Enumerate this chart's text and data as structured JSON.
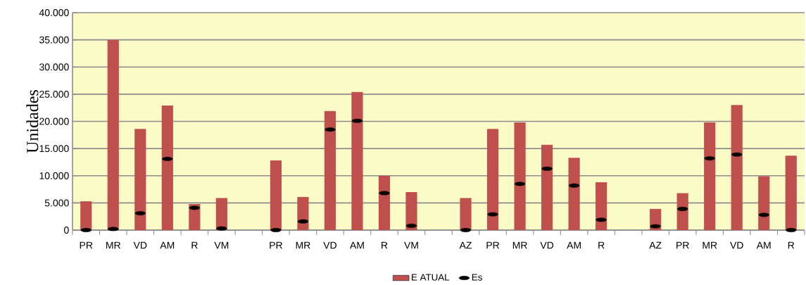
{
  "chart_data": {
    "type": "bar",
    "ylabel": "Unidades",
    "categories": [
      "PR",
      "MR",
      "VD",
      "AM",
      "R",
      "VM",
      null,
      "PR",
      "MR",
      "VD",
      "AM",
      "R",
      "VM",
      null,
      "AZ",
      "PR",
      "MR",
      "VD",
      "AM",
      "R",
      null,
      "AZ",
      "PR",
      "MR",
      "VD",
      "AM",
      "R"
    ],
    "series": [
      {
        "name": "E ATUAL",
        "type": "bar",
        "color": "#c0504d",
        "values": [
          5300,
          35000,
          18600,
          22900,
          4800,
          5900,
          null,
          12800,
          6100,
          21900,
          25400,
          10000,
          7000,
          null,
          5900,
          18600,
          19800,
          15700,
          13300,
          8800,
          null,
          3900,
          6800,
          19800,
          23000,
          9900,
          13700
        ]
      },
      {
        "name": "Es",
        "type": "scatter",
        "color": "#000000",
        "values": [
          0,
          200,
          3100,
          13100,
          4100,
          300,
          null,
          0,
          1600,
          18500,
          20100,
          6800,
          800,
          null,
          0,
          2900,
          8500,
          11300,
          8200,
          1900,
          null,
          700,
          3900,
          13200,
          13900,
          2800,
          0
        ]
      }
    ],
    "ylim": [
      0,
      40000
    ],
    "yticks": [
      {
        "value": 0,
        "label": "0"
      },
      {
        "value": 5000,
        "label": "5.000"
      },
      {
        "value": 10000,
        "label": "10.000"
      },
      {
        "value": 15000,
        "label": "15.000"
      },
      {
        "value": 20000,
        "label": "20.000"
      },
      {
        "value": 25000,
        "label": "25.000"
      },
      {
        "value": 30000,
        "label": "30.000"
      },
      {
        "value": 35000,
        "label": "35.000"
      },
      {
        "value": 40000,
        "label": "40.000"
      }
    ],
    "grid": "y",
    "legend": "bottom"
  }
}
